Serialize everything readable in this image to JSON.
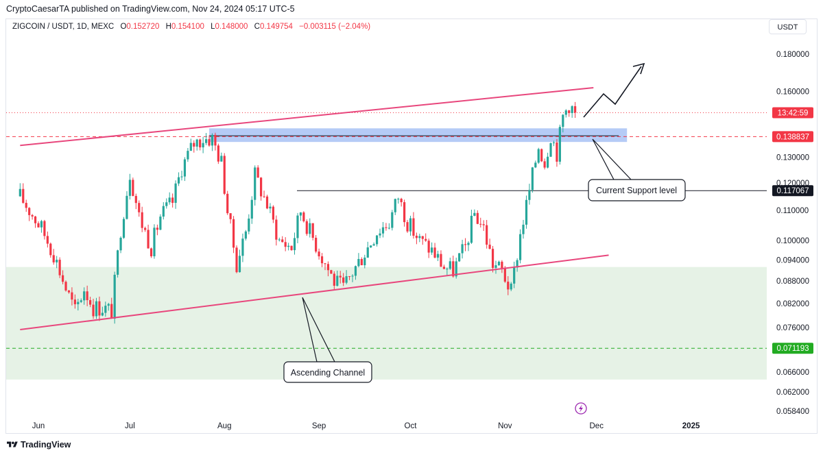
{
  "header": {
    "published_text": "CryptoCaesarTA published on TradingView.com, Nov 24, 2024 05:17 UTC-5"
  },
  "legend": {
    "symbol": "ZIGCOIN / USDT, 1D, MEXC",
    "o_label": "O",
    "o_value": "0.152720",
    "h_label": "H",
    "h_value": "0.154100",
    "l_label": "L",
    "l_value": "0.148000",
    "c_label": "C",
    "c_value": "0.149754",
    "change": "−0.003115 (−2.04%)"
  },
  "currency_button": "USDT",
  "footer": {
    "brand": "TradingView"
  },
  "colors": {
    "up": "#26a69a",
    "down": "#f23645",
    "channel": "#e8467c",
    "support_zone": "#a8c2f5",
    "demand_zone": "#e6f2e6"
  },
  "icons": {
    "logo": "tradingview-logo-icon",
    "flash": "lightning-icon"
  },
  "chart_data": {
    "type": "candlestick",
    "y_scale": "log",
    "ylim": [
      0.0575,
      0.193
    ],
    "y_ticks": [
      "0.180000",
      "0.160000",
      "0.130000",
      "0.120000",
      "0.110000",
      "0.100000",
      "0.094000",
      "0.088000",
      "0.082000",
      "0.076000",
      "0.066000",
      "0.062000",
      "0.058400"
    ],
    "x_ticks": [
      {
        "label": "Jun",
        "date": "2024-06-01"
      },
      {
        "label": "Jul",
        "date": "2024-07-01"
      },
      {
        "label": "Aug",
        "date": "2024-08-01"
      },
      {
        "label": "Sep",
        "date": "2024-09-01"
      },
      {
        "label": "Oct",
        "date": "2024-10-01"
      },
      {
        "label": "Nov",
        "date": "2024-11-01"
      },
      {
        "label": "Dec",
        "date": "2024-12-01"
      },
      {
        "label": "2025",
        "date": "2025-01-01"
      }
    ],
    "closes": [
      {
        "date": "2024-05-26",
        "close": 0.115
      },
      {
        "date": "2024-06-02",
        "close": 0.104
      },
      {
        "date": "2024-06-06",
        "close": 0.096
      },
      {
        "date": "2024-06-10",
        "close": 0.086
      },
      {
        "date": "2024-06-13",
        "close": 0.08
      },
      {
        "date": "2024-06-16",
        "close": 0.086
      },
      {
        "date": "2024-06-19",
        "close": 0.081
      },
      {
        "date": "2024-06-22",
        "close": 0.081
      },
      {
        "date": "2024-06-25",
        "close": 0.08
      },
      {
        "date": "2024-06-28",
        "close": 0.104
      },
      {
        "date": "2024-07-01",
        "close": 0.124
      },
      {
        "date": "2024-07-04",
        "close": 0.108
      },
      {
        "date": "2024-07-08",
        "close": 0.098
      },
      {
        "date": "2024-07-11",
        "close": 0.108
      },
      {
        "date": "2024-07-15",
        "close": 0.113
      },
      {
        "date": "2024-07-18",
        "close": 0.126
      },
      {
        "date": "2024-07-22",
        "close": 0.136
      },
      {
        "date": "2024-07-25",
        "close": 0.138
      },
      {
        "date": "2024-07-28",
        "close": 0.138
      },
      {
        "date": "2024-07-31",
        "close": 0.128
      },
      {
        "date": "2024-08-02",
        "close": 0.11
      },
      {
        "date": "2024-08-05",
        "close": 0.093
      },
      {
        "date": "2024-08-08",
        "close": 0.103
      },
      {
        "date": "2024-08-11",
        "close": 0.123
      },
      {
        "date": "2024-08-15",
        "close": 0.112
      },
      {
        "date": "2024-08-19",
        "close": 0.1
      },
      {
        "date": "2024-08-23",
        "close": 0.098
      },
      {
        "date": "2024-08-26",
        "close": 0.11
      },
      {
        "date": "2024-08-29",
        "close": 0.103
      },
      {
        "date": "2024-09-02",
        "close": 0.095
      },
      {
        "date": "2024-09-06",
        "close": 0.088
      },
      {
        "date": "2024-09-09",
        "close": 0.086
      },
      {
        "date": "2024-09-13",
        "close": 0.092
      },
      {
        "date": "2024-09-17",
        "close": 0.098
      },
      {
        "date": "2024-09-20",
        "close": 0.103
      },
      {
        "date": "2024-09-24",
        "close": 0.106
      },
      {
        "date": "2024-09-27",
        "close": 0.115
      },
      {
        "date": "2024-09-30",
        "close": 0.106
      },
      {
        "date": "2024-10-04",
        "close": 0.1
      },
      {
        "date": "2024-10-08",
        "close": 0.097
      },
      {
        "date": "2024-10-12",
        "close": 0.092
      },
      {
        "date": "2024-10-15",
        "close": 0.091
      },
      {
        "date": "2024-10-19",
        "close": 0.098
      },
      {
        "date": "2024-10-22",
        "close": 0.109
      },
      {
        "date": "2024-10-25",
        "close": 0.104
      },
      {
        "date": "2024-10-28",
        "close": 0.093
      },
      {
        "date": "2024-10-31",
        "close": 0.091
      },
      {
        "date": "2024-11-03",
        "close": 0.085
      },
      {
        "date": "2024-11-06",
        "close": 0.102
      },
      {
        "date": "2024-11-09",
        "close": 0.117
      },
      {
        "date": "2024-11-12",
        "close": 0.135
      },
      {
        "date": "2024-11-14",
        "close": 0.128
      },
      {
        "date": "2024-11-16",
        "close": 0.14
      },
      {
        "date": "2024-11-18",
        "close": 0.132
      },
      {
        "date": "2024-11-20",
        "close": 0.148
      },
      {
        "date": "2024-11-22",
        "close": 0.154
      },
      {
        "date": "2024-11-24",
        "close": 0.149754
      }
    ],
    "channel_upper": {
      "from": {
        "date": "2024-05-26",
        "price": 0.135
      },
      "to": {
        "date": "2024-11-30",
        "price": 0.162
      }
    },
    "channel_lower": {
      "from": {
        "date": "2024-05-26",
        "price": 0.0755
      },
      "to": {
        "date": "2024-12-05",
        "price": 0.0955
      }
    },
    "support_zone": {
      "from_date": "2024-07-27",
      "to_date": "2024-12-11",
      "top": 0.1425,
      "bottom": 0.1365
    },
    "demand_zone": {
      "top": 0.092,
      "bottom": 0.0645
    },
    "horizontal_levels": [
      {
        "price": 0.117067,
        "label": "0.117067",
        "style": "solid",
        "color": "#131722"
      },
      {
        "price": 0.138837,
        "label": "0.138837",
        "style": "dashed",
        "color": "#f23645"
      },
      {
        "price": 0.071193,
        "label": "0.071193",
        "style": "dashed",
        "color": "#22ab22"
      }
    ],
    "current_price_tag": {
      "price": 0.1497,
      "label": "13:42:59",
      "color": "#f23645"
    },
    "annotations": [
      {
        "text": "Current Support level"
      },
      {
        "text": "Ascending Channel"
      }
    ]
  }
}
